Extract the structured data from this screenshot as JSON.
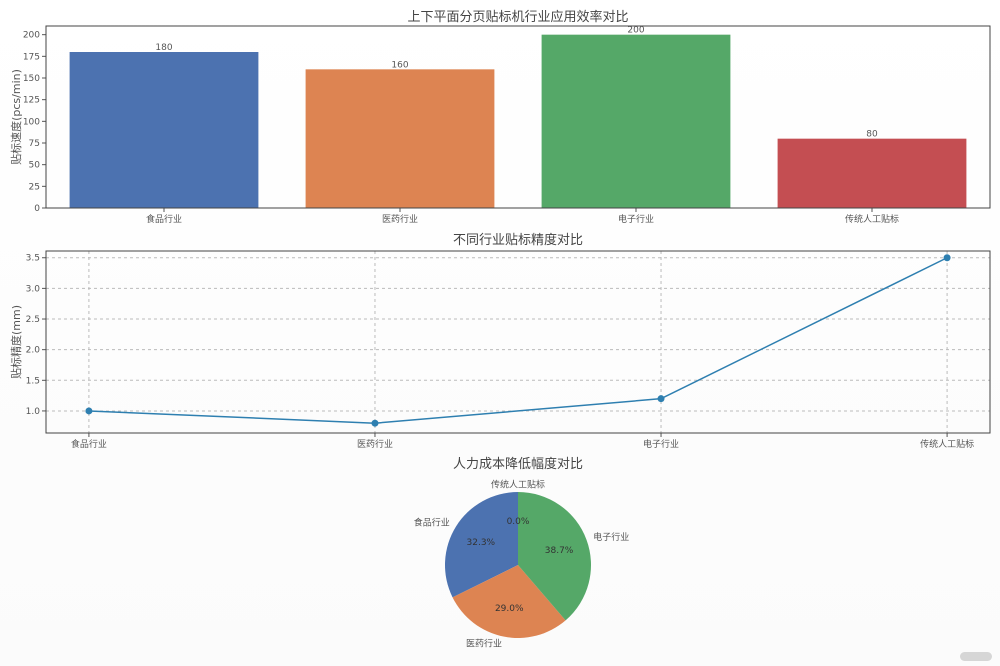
{
  "chart_data": [
    {
      "type": "bar",
      "title": "上下平面分页贴标机行业应用效率对比",
      "xlabel": "",
      "ylabel": "贴标速度(pcs/min)",
      "categories": [
        "食品行业",
        "医药行业",
        "电子行业",
        "传统人工贴标"
      ],
      "values": [
        180,
        160,
        200,
        80
      ],
      "colors": [
        "#4c72b0",
        "#dd8452",
        "#55a868",
        "#c44e52"
      ],
      "ylim": [
        0,
        210
      ],
      "yticks": [
        0,
        25,
        50,
        75,
        100,
        125,
        150,
        175,
        200
      ],
      "grid": false,
      "data_labels": true
    },
    {
      "type": "line",
      "title": "不同行业贴标精度对比",
      "xlabel": "",
      "ylabel": "贴标精度(mm)",
      "categories": [
        "食品行业",
        "医药行业",
        "电子行业",
        "传统人工贴标"
      ],
      "values": [
        1.0,
        0.8,
        1.2,
        3.5
      ],
      "color": "#2e7fb0",
      "ylim": [
        0.64,
        3.61
      ],
      "yticks": [
        1.0,
        1.5,
        2.0,
        2.5,
        3.0,
        3.5
      ],
      "grid": true,
      "marker": "circle"
    },
    {
      "type": "pie",
      "title": "人力成本降低幅度对比",
      "categories": [
        "食品行业",
        "医药行业",
        "电子行业",
        "传统人工贴标"
      ],
      "labels_pct": [
        "32.3%",
        "29.0%",
        "38.7%",
        "0.0%"
      ],
      "values": [
        32.3,
        29.0,
        38.7,
        0.0
      ],
      "colors": [
        "#4c72b0",
        "#dd8452",
        "#55a868",
        "#c44e52"
      ],
      "start_angle": 90,
      "direction": "counterclockwise"
    }
  ]
}
